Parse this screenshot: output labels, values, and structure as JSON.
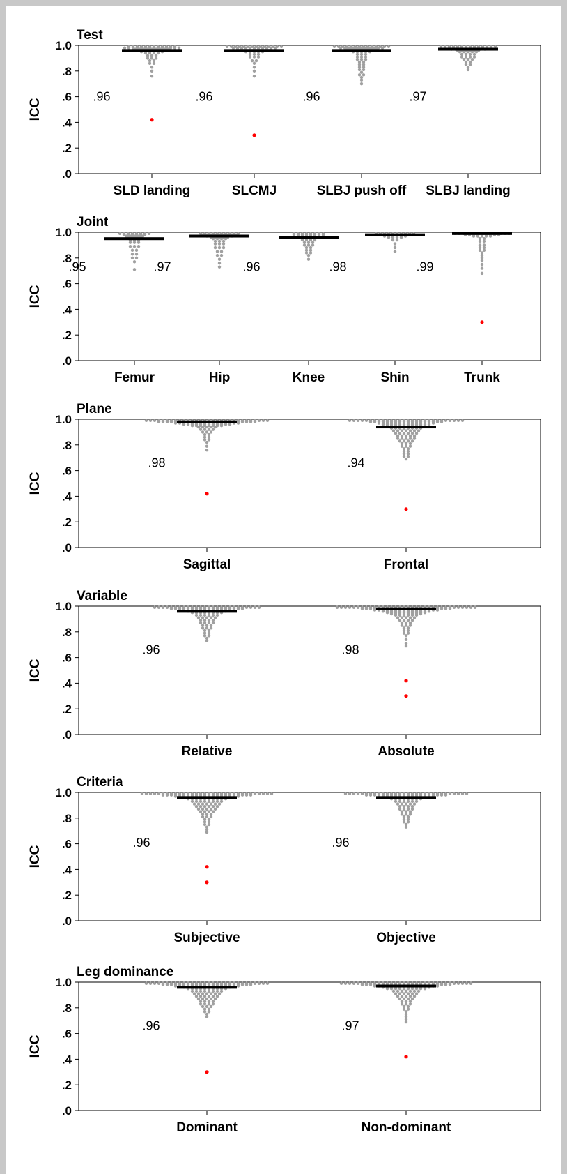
{
  "chart_data": [
    {
      "type": "scatter",
      "title": "Test",
      "ylabel": "ICC",
      "ylim": [
        0,
        1
      ],
      "yticks": [
        ".0",
        ".2",
        ".4",
        ".6",
        ".8",
        "1.0"
      ],
      "categories": [
        "SLD landing",
        "SLCMJ",
        "SLBJ push off",
        "SLBJ landing"
      ],
      "medians": [
        0.96,
        0.96,
        0.96,
        0.97
      ],
      "median_labels": [
        ".96",
        ".96",
        ".96",
        ".97"
      ],
      "outliers": [
        [
          0.42
        ],
        [
          0.3
        ],
        [],
        []
      ],
      "bee_counts": [
        [
          [
            0.99,
            12
          ],
          [
            0.98,
            14
          ],
          [
            0.97,
            9
          ],
          [
            0.96,
            8
          ],
          [
            0.95,
            6
          ],
          [
            0.94,
            4
          ],
          [
            0.92,
            3
          ],
          [
            0.9,
            3
          ],
          [
            0.88,
            2
          ],
          [
            0.86,
            2
          ],
          [
            0.83,
            1
          ],
          [
            0.8,
            1
          ],
          [
            0.76,
            1
          ]
        ],
        [
          [
            0.99,
            14
          ],
          [
            0.98,
            11
          ],
          [
            0.97,
            9
          ],
          [
            0.96,
            8
          ],
          [
            0.95,
            5
          ],
          [
            0.93,
            3
          ],
          [
            0.91,
            3
          ],
          [
            0.88,
            2
          ],
          [
            0.86,
            1
          ],
          [
            0.83,
            1
          ],
          [
            0.8,
            1
          ],
          [
            0.76,
            1
          ]
        ],
        [
          [
            0.99,
            14
          ],
          [
            0.98,
            11
          ],
          [
            0.97,
            8
          ],
          [
            0.96,
            6
          ],
          [
            0.95,
            5
          ],
          [
            0.93,
            3
          ],
          [
            0.91,
            3
          ],
          [
            0.89,
            3
          ],
          [
            0.87,
            2
          ],
          [
            0.85,
            2
          ],
          [
            0.83,
            2
          ],
          [
            0.81,
            2
          ],
          [
            0.79,
            1
          ],
          [
            0.77,
            2
          ],
          [
            0.75,
            1
          ],
          [
            0.73,
            1
          ],
          [
            0.7,
            1
          ]
        ],
        [
          [
            0.99,
            14
          ],
          [
            0.98,
            12
          ],
          [
            0.97,
            9
          ],
          [
            0.96,
            6
          ],
          [
            0.95,
            5
          ],
          [
            0.93,
            4
          ],
          [
            0.91,
            4
          ],
          [
            0.89,
            3
          ],
          [
            0.87,
            2
          ],
          [
            0.85,
            2
          ],
          [
            0.83,
            1
          ],
          [
            0.81,
            1
          ]
        ]
      ],
      "colors": {
        "points": "#a0a0a0",
        "outlier": "#ff0000",
        "median": "#000000"
      }
    },
    {
      "type": "scatter",
      "title": "Joint",
      "ylabel": "ICC",
      "ylim": [
        0,
        1
      ],
      "yticks": [
        ".0",
        ".2",
        ".4",
        ".6",
        ".8",
        "1.0"
      ],
      "categories": [
        "Femur",
        "Hip",
        "Knee",
        "Shin",
        "Trunk"
      ],
      "medians": [
        0.95,
        0.97,
        0.96,
        0.98,
        0.99
      ],
      "median_labels": [
        ".95",
        ".97",
        ".96",
        ".98",
        ".99"
      ],
      "outliers": [
        [],
        [],
        [],
        [],
        [
          0.3
        ]
      ],
      "bee_counts": [
        [
          [
            0.99,
            8
          ],
          [
            0.98,
            6
          ],
          [
            0.97,
            5
          ],
          [
            0.96,
            4
          ],
          [
            0.94,
            3
          ],
          [
            0.92,
            3
          ],
          [
            0.89,
            3
          ],
          [
            0.86,
            2
          ],
          [
            0.83,
            2
          ],
          [
            0.8,
            2
          ],
          [
            0.77,
            1
          ],
          [
            0.71,
            1
          ]
        ],
        [
          [
            0.99,
            10
          ],
          [
            0.98,
            9
          ],
          [
            0.97,
            7
          ],
          [
            0.96,
            5
          ],
          [
            0.95,
            4
          ],
          [
            0.93,
            3
          ],
          [
            0.91,
            3
          ],
          [
            0.88,
            3
          ],
          [
            0.85,
            2
          ],
          [
            0.82,
            2
          ],
          [
            0.79,
            1
          ],
          [
            0.76,
            1
          ],
          [
            0.73,
            1
          ]
        ],
        [
          [
            0.99,
            8
          ],
          [
            0.98,
            8
          ],
          [
            0.97,
            6
          ],
          [
            0.96,
            5
          ],
          [
            0.94,
            4
          ],
          [
            0.92,
            3
          ],
          [
            0.9,
            3
          ],
          [
            0.88,
            2
          ],
          [
            0.86,
            2
          ],
          [
            0.84,
            2
          ],
          [
            0.82,
            1
          ],
          [
            0.79,
            1
          ]
        ],
        [
          [
            0.99,
            10
          ],
          [
            0.98,
            9
          ],
          [
            0.97,
            6
          ],
          [
            0.96,
            4
          ],
          [
            0.94,
            2
          ],
          [
            0.91,
            1
          ],
          [
            0.88,
            1
          ],
          [
            0.85,
            1
          ]
        ],
        [
          [
            0.99,
            14
          ],
          [
            0.98,
            9
          ],
          [
            0.97,
            5
          ],
          [
            0.95,
            2
          ],
          [
            0.93,
            2
          ],
          [
            0.9,
            2
          ],
          [
            0.88,
            2
          ],
          [
            0.86,
            2
          ],
          [
            0.84,
            1
          ],
          [
            0.82,
            1
          ],
          [
            0.8,
            1
          ],
          [
            0.78,
            1
          ],
          [
            0.75,
            1
          ],
          [
            0.72,
            1
          ],
          [
            0.68,
            1
          ]
        ]
      ],
      "colors": {
        "points": "#a0a0a0",
        "outlier": "#ff0000",
        "median": "#000000"
      }
    },
    {
      "type": "scatter",
      "title": "Plane",
      "ylabel": "ICC",
      "ylim": [
        0,
        1
      ],
      "yticks": [
        ".0",
        ".2",
        ".4",
        ".6",
        ".8",
        "1.0"
      ],
      "categories": [
        "Sagittal",
        "Frontal"
      ],
      "medians": [
        0.98,
        0.94
      ],
      "median_labels": [
        ".98",
        ".94"
      ],
      "outliers": [
        [
          0.42
        ],
        [
          0.3
        ]
      ],
      "bee_counts": [
        [
          [
            0.99,
            30
          ],
          [
            0.98,
            24
          ],
          [
            0.97,
            16
          ],
          [
            0.96,
            12
          ],
          [
            0.95,
            8
          ],
          [
            0.94,
            5
          ],
          [
            0.92,
            4
          ],
          [
            0.9,
            3
          ],
          [
            0.88,
            2
          ],
          [
            0.86,
            2
          ],
          [
            0.84,
            2
          ],
          [
            0.82,
            1
          ],
          [
            0.79,
            1
          ],
          [
            0.76,
            1
          ]
        ],
        [
          [
            0.99,
            28
          ],
          [
            0.98,
            18
          ],
          [
            0.97,
            14
          ],
          [
            0.96,
            12
          ],
          [
            0.95,
            10
          ],
          [
            0.93,
            8
          ],
          [
            0.91,
            7
          ],
          [
            0.89,
            6
          ],
          [
            0.87,
            5
          ],
          [
            0.85,
            5
          ],
          [
            0.83,
            4
          ],
          [
            0.81,
            3
          ],
          [
            0.79,
            3
          ],
          [
            0.77,
            2
          ],
          [
            0.75,
            2
          ],
          [
            0.73,
            2
          ],
          [
            0.71,
            2
          ],
          [
            0.69,
            1
          ]
        ]
      ],
      "colors": {
        "points": "#a0a0a0",
        "outlier": "#ff0000",
        "median": "#000000"
      }
    },
    {
      "type": "scatter",
      "title": "Variable",
      "ylabel": "ICC",
      "ylim": [
        0,
        1
      ],
      "yticks": [
        ".0",
        ".2",
        ".4",
        ".6",
        ".8",
        "1.0"
      ],
      "categories": [
        "Relative",
        "Absolute"
      ],
      "medians": [
        0.96,
        0.98
      ],
      "median_labels": [
        ".96",
        ".98"
      ],
      "outliers": [
        [],
        [
          0.42,
          0.3
        ]
      ],
      "bee_counts": [
        [
          [
            0.99,
            26
          ],
          [
            0.98,
            18
          ],
          [
            0.97,
            14
          ],
          [
            0.96,
            10
          ],
          [
            0.95,
            8
          ],
          [
            0.93,
            6
          ],
          [
            0.91,
            5
          ],
          [
            0.89,
            4
          ],
          [
            0.87,
            4
          ],
          [
            0.85,
            3
          ],
          [
            0.83,
            3
          ],
          [
            0.81,
            2
          ],
          [
            0.79,
            2
          ],
          [
            0.77,
            2
          ],
          [
            0.75,
            1
          ],
          [
            0.73,
            1
          ]
        ],
        [
          [
            0.99,
            34
          ],
          [
            0.98,
            22
          ],
          [
            0.97,
            16
          ],
          [
            0.96,
            12
          ],
          [
            0.95,
            10
          ],
          [
            0.94,
            8
          ],
          [
            0.93,
            6
          ],
          [
            0.91,
            5
          ],
          [
            0.89,
            4
          ],
          [
            0.87,
            3
          ],
          [
            0.85,
            3
          ],
          [
            0.83,
            2
          ],
          [
            0.81,
            2
          ],
          [
            0.79,
            2
          ],
          [
            0.77,
            1
          ],
          [
            0.74,
            1
          ],
          [
            0.71,
            1
          ],
          [
            0.69,
            1
          ]
        ]
      ],
      "colors": {
        "points": "#a0a0a0",
        "outlier": "#ff0000",
        "median": "#000000"
      }
    },
    {
      "type": "scatter",
      "title": "Criteria",
      "ylabel": "ICC",
      "ylim": [
        0,
        1
      ],
      "yticks": [
        ".0",
        ".2",
        ".4",
        ".6",
        ".8",
        "1.0"
      ],
      "categories": [
        "Subjective",
        "Objective"
      ],
      "medians": [
        0.96,
        0.96
      ],
      "median_labels": [
        ".96",
        ".96"
      ],
      "outliers": [
        [
          0.42,
          0.3
        ],
        []
      ],
      "bee_counts": [
        [
          [
            0.99,
            32
          ],
          [
            0.98,
            22
          ],
          [
            0.97,
            16
          ],
          [
            0.96,
            12
          ],
          [
            0.95,
            10
          ],
          [
            0.93,
            8
          ],
          [
            0.91,
            7
          ],
          [
            0.89,
            6
          ],
          [
            0.87,
            5
          ],
          [
            0.85,
            4
          ],
          [
            0.83,
            3
          ],
          [
            0.81,
            3
          ],
          [
            0.79,
            2
          ],
          [
            0.77,
            2
          ],
          [
            0.75,
            2
          ],
          [
            0.73,
            1
          ],
          [
            0.71,
            1
          ],
          [
            0.69,
            1
          ]
        ],
        [
          [
            0.99,
            30
          ],
          [
            0.98,
            20
          ],
          [
            0.97,
            14
          ],
          [
            0.96,
            10
          ],
          [
            0.95,
            8
          ],
          [
            0.93,
            6
          ],
          [
            0.91,
            5
          ],
          [
            0.89,
            4
          ],
          [
            0.87,
            4
          ],
          [
            0.85,
            3
          ],
          [
            0.83,
            3
          ],
          [
            0.81,
            2
          ],
          [
            0.79,
            2
          ],
          [
            0.77,
            2
          ],
          [
            0.75,
            1
          ],
          [
            0.73,
            1
          ]
        ]
      ],
      "colors": {
        "points": "#a0a0a0",
        "outlier": "#ff0000",
        "median": "#000000"
      }
    },
    {
      "type": "scatter",
      "title": "Leg dominance",
      "ylabel": "ICC",
      "ylim": [
        0,
        1
      ],
      "yticks": [
        ".0",
        ".2",
        ".4",
        ".6",
        ".8",
        "1.0"
      ],
      "categories": [
        "Dominant",
        "Non-dominant"
      ],
      "medians": [
        0.96,
        0.97
      ],
      "median_labels": [
        ".96",
        ".97"
      ],
      "outliers": [
        [
          0.3
        ],
        [
          0.42
        ]
      ],
      "bee_counts": [
        [
          [
            0.99,
            30
          ],
          [
            0.98,
            22
          ],
          [
            0.97,
            16
          ],
          [
            0.96,
            12
          ],
          [
            0.95,
            10
          ],
          [
            0.93,
            8
          ],
          [
            0.91,
            7
          ],
          [
            0.89,
            6
          ],
          [
            0.87,
            5
          ],
          [
            0.85,
            4
          ],
          [
            0.83,
            4
          ],
          [
            0.81,
            3
          ],
          [
            0.79,
            2
          ],
          [
            0.77,
            2
          ],
          [
            0.75,
            1
          ],
          [
            0.73,
            1
          ]
        ],
        [
          [
            0.99,
            32
          ],
          [
            0.98,
            22
          ],
          [
            0.97,
            16
          ],
          [
            0.96,
            12
          ],
          [
            0.95,
            10
          ],
          [
            0.93,
            7
          ],
          [
            0.91,
            6
          ],
          [
            0.89,
            5
          ],
          [
            0.87,
            4
          ],
          [
            0.85,
            3
          ],
          [
            0.83,
            3
          ],
          [
            0.81,
            2
          ],
          [
            0.79,
            2
          ],
          [
            0.77,
            1
          ],
          [
            0.75,
            1
          ],
          [
            0.73,
            1
          ],
          [
            0.71,
            1
          ],
          [
            0.69,
            1
          ]
        ]
      ],
      "colors": {
        "points": "#a0a0a0",
        "outlier": "#ff0000",
        "median": "#000000"
      }
    }
  ]
}
